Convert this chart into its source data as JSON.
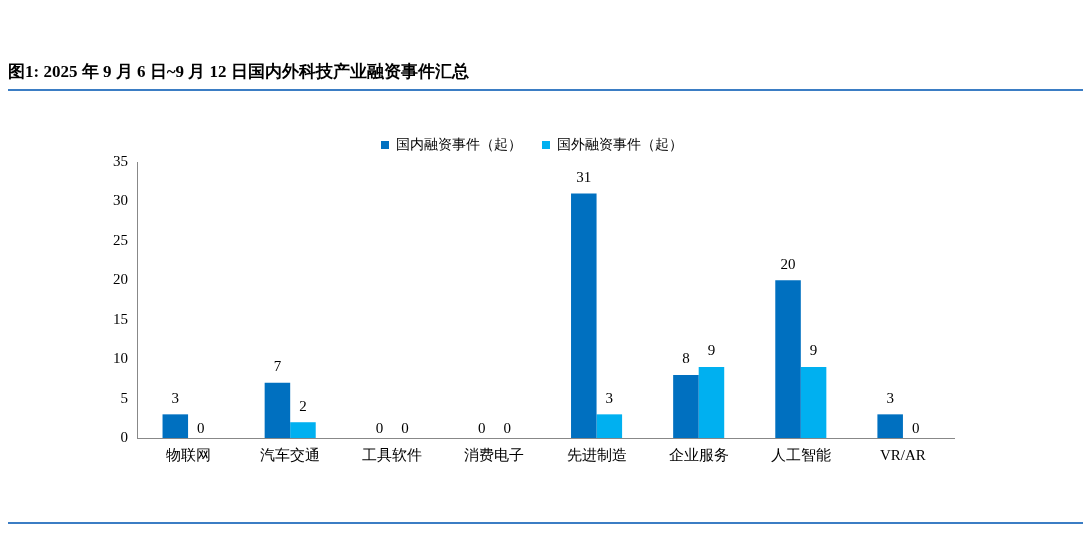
{
  "chart_data": {
    "type": "bar",
    "title": "图1:  2025 年 9 月 6 日~9 月 12 日国内外科技产业融资事件汇总",
    "categories": [
      "物联网",
      "汽车交通",
      "工具软件",
      "消费电子",
      "先进制造",
      "企业服务",
      "人工智能",
      "VR/AR"
    ],
    "series": [
      {
        "name": "国内融资事件（起）",
        "color": "#0070c0",
        "values": [
          3,
          7,
          0,
          0,
          31,
          8,
          20,
          3
        ]
      },
      {
        "name": "国外融资事件（起）",
        "color": "#00b0f0",
        "values": [
          0,
          2,
          0,
          0,
          3,
          9,
          9,
          0
        ]
      }
    ],
    "ylim": [
      0,
      35
    ],
    "yticks": [
      0,
      5,
      10,
      15,
      20,
      25,
      30,
      35
    ],
    "grid": false,
    "legend": "top",
    "data_labels": true
  }
}
